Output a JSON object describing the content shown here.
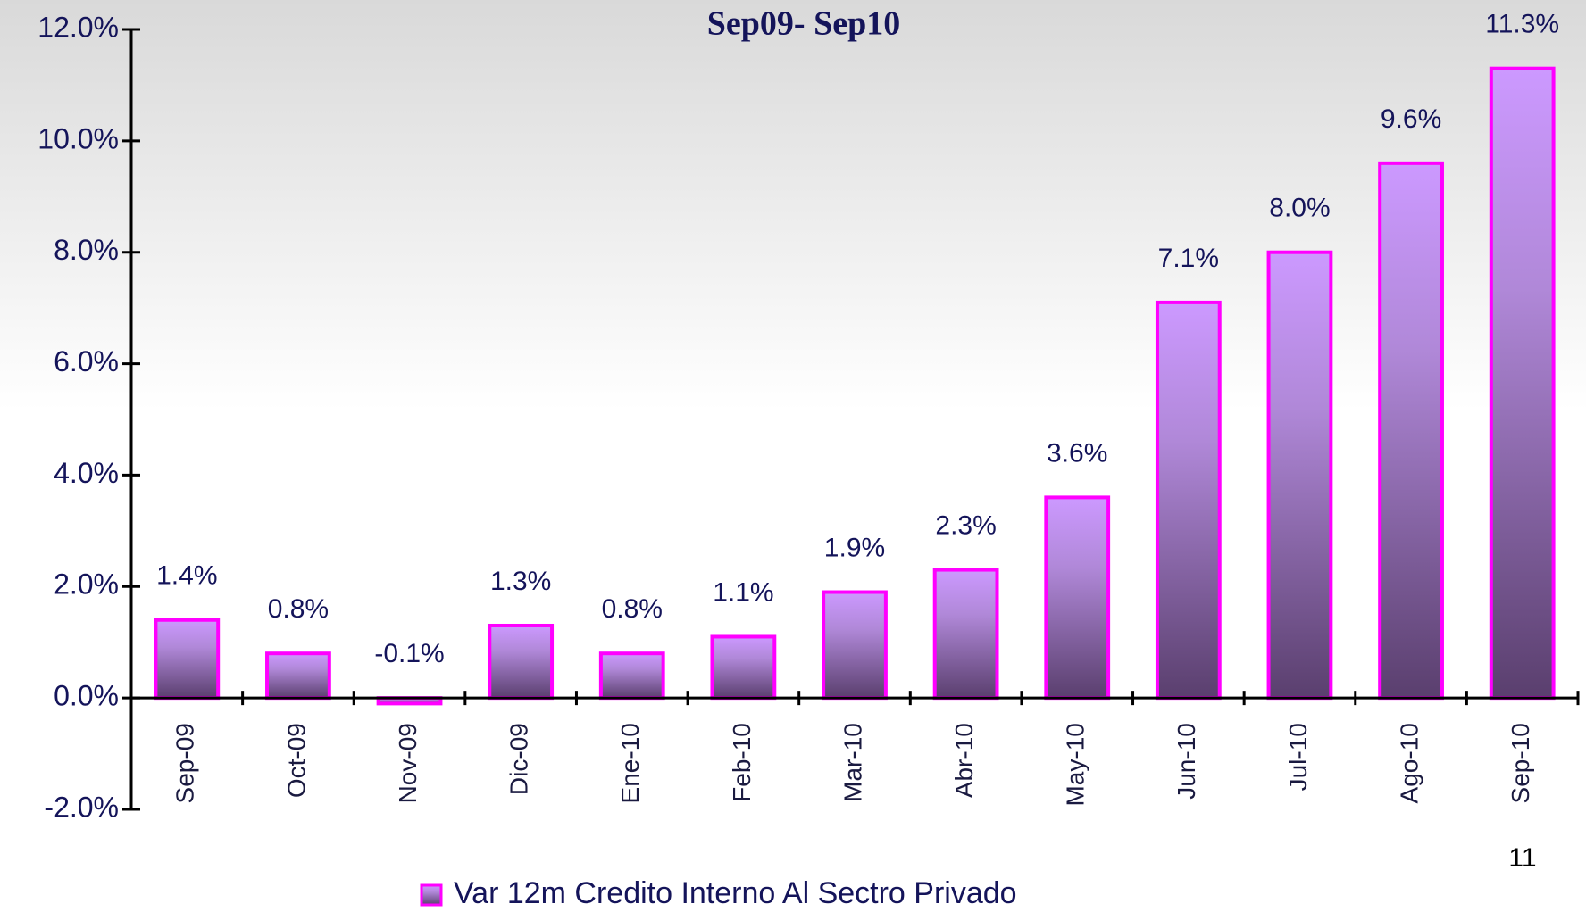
{
  "chart_data": {
    "type": "bar",
    "title": "Sep09- Sep10",
    "categories": [
      "Sep-09",
      "Oct-09",
      "Nov-09",
      "Dic-09",
      "Ene-10",
      "Feb-10",
      "Mar-10",
      "Abr-10",
      "May-10",
      "Jun-10",
      "Jul-10",
      "Ago-10",
      "Sep-10"
    ],
    "series": [
      {
        "name": "Var 12m Credito Interno Al Sectro Privado",
        "color": "#cc99ff",
        "values": [
          1.4,
          0.8,
          -0.1,
          1.3,
          0.8,
          1.1,
          1.9,
          2.3,
          3.6,
          7.1,
          8.0,
          9.6,
          11.3
        ],
        "value_labels": [
          "1.4%",
          "0.8%",
          "-0.1%",
          "1.3%",
          "0.8%",
          "1.1%",
          "1.9%",
          "2.3%",
          "3.6%",
          "7.1%",
          "8.0%",
          "9.6%",
          "11.3%"
        ]
      }
    ],
    "ylim": [
      -2,
      12
    ],
    "yticks": [
      {
        "value": -2,
        "label": "-2.0%"
      },
      {
        "value": 0,
        "label": "0.0%"
      },
      {
        "value": 2,
        "label": "2.0%"
      },
      {
        "value": 4,
        "label": "4.0%"
      },
      {
        "value": 6,
        "label": "6.0%"
      },
      {
        "value": 8,
        "label": "8.0%"
      },
      {
        "value": 10,
        "label": "10.0%"
      },
      {
        "value": 12,
        "label": "12.0%"
      }
    ],
    "grid": false,
    "legend": "bottom"
  },
  "page_number": "11"
}
